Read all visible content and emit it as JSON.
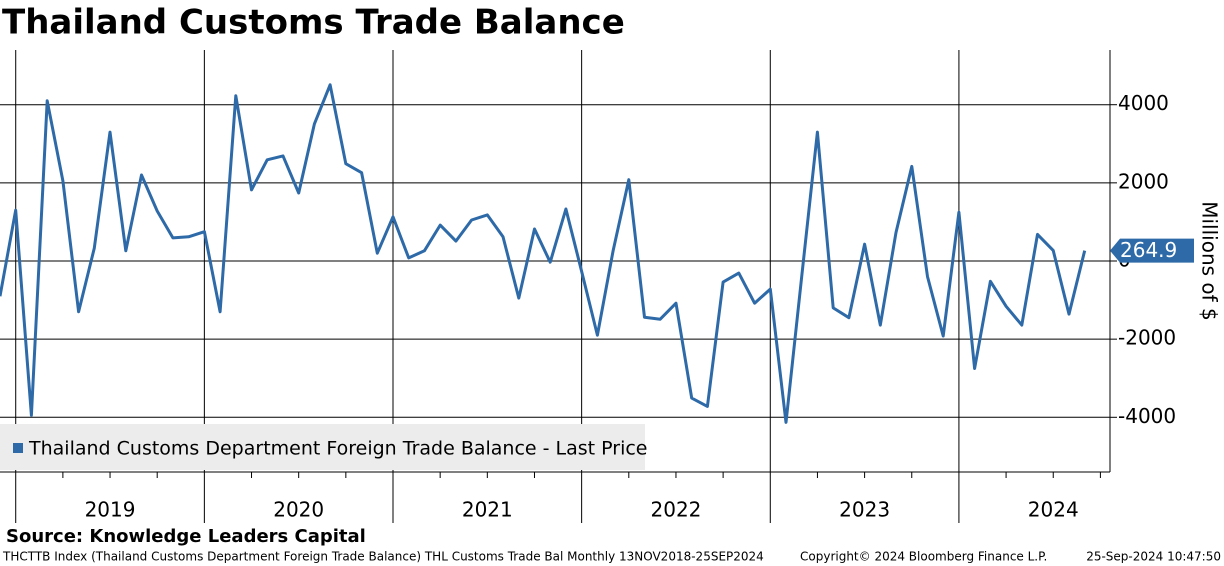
{
  "chart_data": {
    "type": "line",
    "title": "Thailand Customs Trade Balance",
    "y_label": "Millions of $",
    "x_labels": [
      "2019",
      "2020",
      "2021",
      "2022",
      "2023",
      "2024"
    ],
    "series": [
      {
        "name": "Thailand Customs Department Foreign Trade Balance - Last Price",
        "color": "#2e6aa8",
        "values": [
          -900,
          1300,
          -3950,
          4100,
          2050,
          -1300,
          330,
          3300,
          260,
          2200,
          1280,
          590,
          620,
          750,
          -1300,
          4230,
          1820,
          2590,
          2690,
          1740,
          3510,
          4510,
          2490,
          2260,
          200,
          1130,
          80,
          260,
          920,
          510,
          1050,
          1180,
          620,
          -950,
          820,
          -30,
          1330,
          -260,
          -1900,
          260,
          2080,
          -1440,
          -1490,
          -1080,
          -3510,
          -3720,
          -540,
          -310,
          -1080,
          -720,
          -4130,
          -400,
          3300,
          -1200,
          -1450,
          430,
          -1640,
          730,
          2420,
          -400,
          -1920,
          1250,
          -2750,
          -520,
          -1160,
          -1640,
          680,
          270,
          -1360,
          264.9
        ]
      }
    ],
    "ylim": [
      -5400,
      5400
    ],
    "yticks": [
      -4000,
      -2000,
      0,
      2000,
      4000
    ],
    "grid": true,
    "source": "Source: Knowledge Leaders Capital",
    "footer_left": "THCTTB Index (Thailand Customs Department Foreign Trade Balance) THL Customs Trade Bal  Monthly 13NOV2018-25SEP2024",
    "footer_center": "Copyright© 2024 Bloomberg Finance L.P.",
    "footer_right": "25-Sep-2024 10:47:50"
  }
}
